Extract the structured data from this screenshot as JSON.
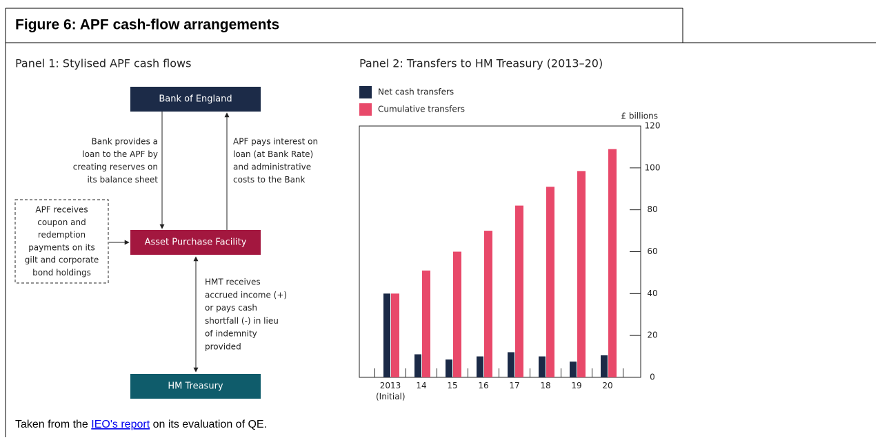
{
  "figure": {
    "title": "Figure 6: APF cash-flow arrangements",
    "footer_pre": "Taken from the ",
    "footer_link": "IEO's report",
    "footer_post": " on its evaluation of QE."
  },
  "diagram": {
    "title": "Panel 1: Stylised APF cash flows",
    "nodes": [
      {
        "label": "Bank of England",
        "color": "#1c2b48"
      },
      {
        "label": "Asset Purchase Facility",
        "color": "#a3173f"
      },
      {
        "label": "HM Treasury",
        "color": "#0f5c6b"
      }
    ],
    "loan_text": [
      "Bank provides a",
      "loan to the APF by",
      "creating reserves on",
      "its balance sheet"
    ],
    "interest_text": [
      "APF pays interest on",
      "loan (at Bank Rate)",
      "and administrative",
      "costs to the Bank"
    ],
    "coupon_text": [
      "APF receives",
      "coupon and",
      "redemption",
      "payments on its",
      "gilt and corporate",
      "bond holdings"
    ],
    "hmt_text": [
      "HMT receives",
      "accrued income (+)",
      "or pays cash",
      "shortfall (-) in lieu",
      "of indemnity",
      "provided"
    ]
  },
  "chart_data": {
    "type": "bar",
    "title": "Panel 2: Transfers to HM Treasury (2013–20)",
    "y_label": "£ billions",
    "categories": [
      "2013 (Initial)",
      "14",
      "15",
      "16",
      "17",
      "18",
      "19",
      "20"
    ],
    "series": [
      {
        "name": "Net cash transfers",
        "color": "#1b2a47",
        "values": [
          40,
          11,
          8.5,
          10,
          12,
          10,
          7.5,
          10.5
        ]
      },
      {
        "name": "Cumulative transfers",
        "color": "#e8496a",
        "values": [
          40,
          51,
          60,
          70,
          82,
          91,
          98.5,
          109
        ]
      }
    ],
    "ylim": [
      0,
      120
    ],
    "yticks": [
      0,
      20,
      40,
      60,
      80,
      100,
      120
    ],
    "y_axis_side": "right"
  }
}
